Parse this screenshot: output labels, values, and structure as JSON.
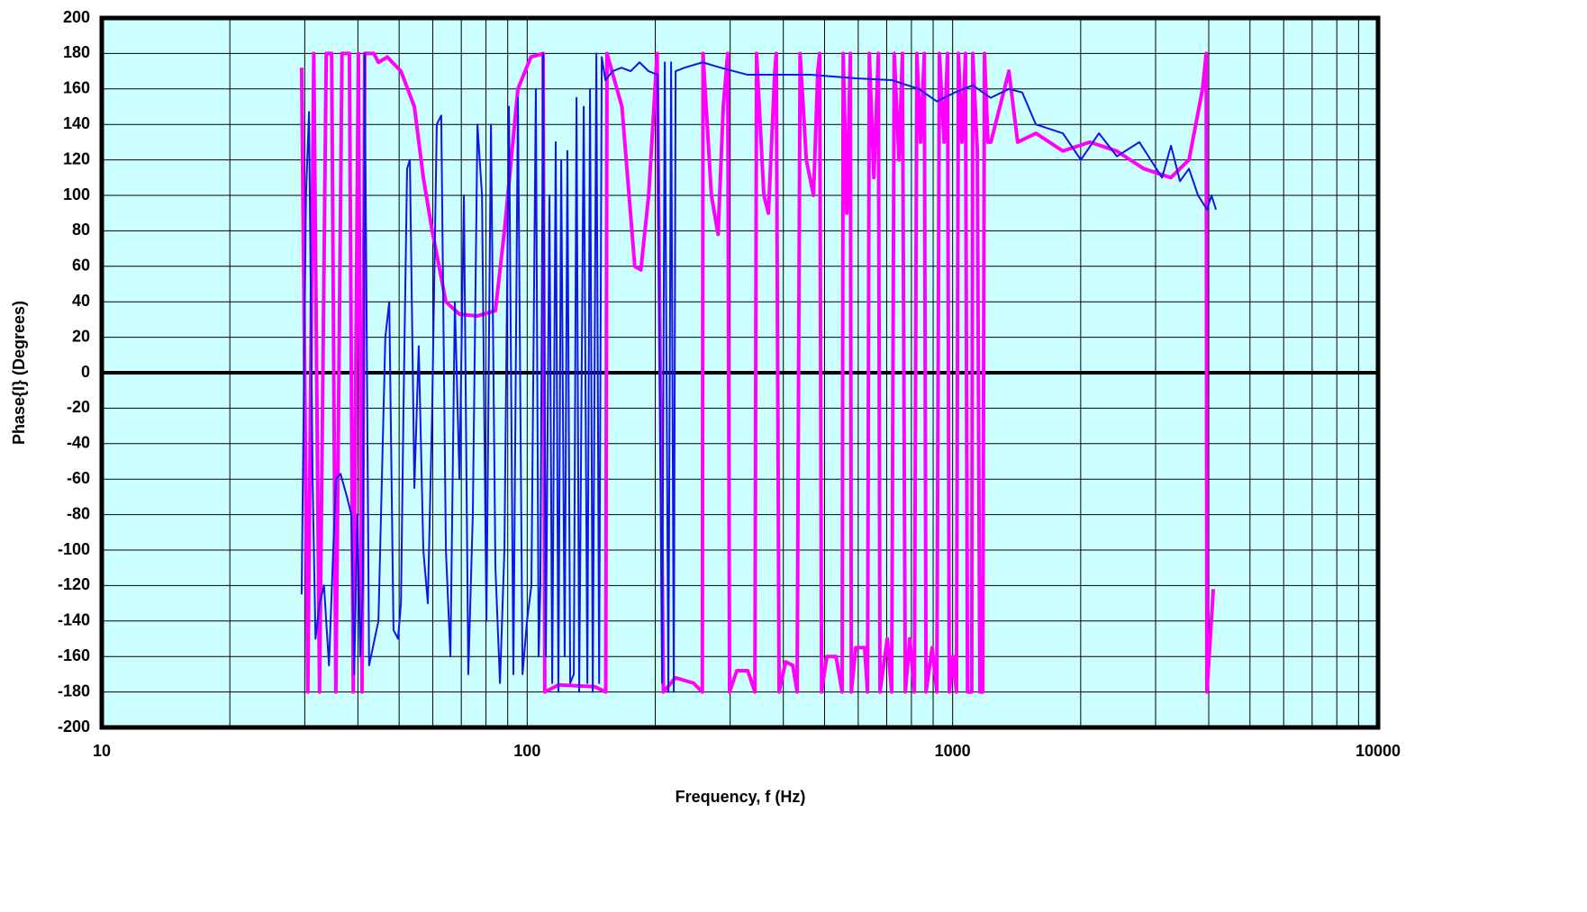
{
  "chart_data": {
    "type": "line",
    "xlabel": "Frequency, f (Hz)",
    "ylabel": "Phase{I} (Degrees)",
    "xlog": true,
    "xlim": [
      10,
      10000
    ],
    "xticks": [
      10,
      100,
      1000,
      10000
    ],
    "ylim": [
      -200,
      200
    ],
    "yticks": [
      -200,
      -180,
      -160,
      -140,
      -120,
      -100,
      -80,
      -60,
      -40,
      -20,
      0,
      20,
      40,
      60,
      80,
      100,
      120,
      140,
      160,
      180,
      200
    ],
    "grid": true,
    "background": "#ccffff",
    "series": [
      {
        "color": "#ff00ff",
        "x": [
          29.5,
          30.5,
          31.5,
          32.5,
          33.7,
          34.7,
          35.5,
          36.7,
          38.2,
          39.0,
          40.1,
          40.9,
          41.5,
          43.6,
          44.7,
          46.9,
          50.5,
          54.3,
          57.0,
          59.8,
          64.4,
          69.3,
          76.4,
          84.2,
          88.4,
          95.1,
          102,
          109,
          110,
          118.5,
          144,
          153,
          154,
          167,
          179,
          185,
          193,
          202,
          209,
          223,
          246,
          258,
          259,
          271,
          281,
          289,
          296,
          299,
          311,
          330,
          343,
          346,
          360,
          369,
          382,
          385,
          391,
          405,
          421,
          431,
          438,
          453,
          471,
          482,
          487,
          492,
          506,
          532,
          550,
          553,
          564,
          575,
          578,
          592,
          621,
          631,
          637,
          653,
          669,
          675,
          702,
          719,
          729,
          748,
          762,
          774,
          793,
          813,
          824,
          841,
          858,
          866,
          895,
          918,
          931,
          955,
          973,
          982,
          1002,
          1021,
          1032,
          1052,
          1072,
          1084,
          1109,
          1115,
          1143,
          1159,
          1177,
          1188,
          1211,
          1230,
          1356,
          1422,
          1570,
          1816,
          2101,
          2430,
          2816,
          3258,
          3595,
          3868,
          3945,
          3960,
          4100
        ],
        "values": [
          172,
          -180,
          180,
          -180,
          180,
          180,
          -180,
          180,
          180,
          -180,
          180,
          -180,
          180,
          180,
          175,
          178,
          170,
          150,
          110,
          80,
          40,
          33,
          32,
          35,
          80,
          160,
          178,
          180,
          -180,
          -176,
          -177,
          -180,
          180,
          150,
          60,
          58,
          100,
          180,
          -180,
          -172,
          -175,
          -180,
          180,
          100,
          78,
          150,
          180,
          -180,
          -168,
          -168,
          -180,
          180,
          100,
          90,
          170,
          180,
          -180,
          -163,
          -165,
          -180,
          180,
          120,
          100,
          170,
          180,
          -180,
          -160,
          -160,
          -180,
          180,
          90,
          180,
          -180,
          -155,
          -155,
          -180,
          180,
          110,
          180,
          -180,
          -150,
          -180,
          180,
          120,
          180,
          -180,
          -150,
          -180,
          180,
          130,
          180,
          -180,
          -155,
          -180,
          180,
          130,
          180,
          -180,
          -160,
          -180,
          180,
          130,
          180,
          -180,
          -180,
          180,
          125,
          -180,
          -180,
          180,
          130,
          130,
          170,
          130,
          135,
          125,
          130,
          125,
          115,
          110,
          120,
          160,
          180,
          -180,
          -122
        ]
      },
      {
        "color": "#1414e6",
        "x": [
          29.5,
          30.2,
          30.7,
          31.3,
          31.8,
          32.5,
          33.3,
          34.2,
          35.0,
          35.5,
          36.4,
          37.7,
          38.6,
          39.2,
          39.9,
          40.5,
          41.1,
          41.5,
          42.5,
          44.7,
          46.4,
          47.4,
          48.5,
          49.7,
          50.5,
          51.2,
          52.2,
          53.0,
          54.3,
          55.6,
          57.0,
          58.4,
          59.8,
          61.3,
          62.8,
          64.4,
          66.0,
          67.6,
          69.3,
          71.0,
          72.7,
          74.5,
          76.4,
          78.3,
          80.2,
          82.2,
          84.2,
          86.3,
          88.4,
          90.6,
          92.8,
          95.1,
          97.5,
          99.9,
          102.3,
          104.8,
          106.4,
          107.4,
          109.0,
          110.6,
          112.8,
          114.5,
          116.7,
          118.4,
          120.2,
          122.5,
          124.3,
          126.2,
          128.7,
          130.6,
          132.5,
          135.8,
          138.5,
          140.5,
          142.6,
          145.4,
          147.6,
          149.7,
          152.7,
          158.7,
          166.6,
          175.0,
          183.7,
          192.9,
          202.5,
          207.5,
          210.6,
          214.7,
          217.9,
          221.1,
          223.3,
          234.4,
          258.4,
          284.9,
          329.7,
          381.6,
          463.8,
          591.7,
          719.3,
          832.4,
          918.0,
          1012,
          1115,
          1229,
          1356,
          1458,
          1569,
          1816,
          2002,
          2208,
          2433,
          2748,
          3106,
          3261,
          3423,
          3594,
          3775,
          3963,
          4059,
          4160
        ],
        "values": [
          -125,
          100,
          147,
          -60,
          -150,
          -130,
          -120,
          -165,
          -100,
          -60,
          -57,
          -70,
          -80,
          -170,
          -80,
          -160,
          -120,
          180,
          -165,
          -140,
          20,
          40,
          -145,
          -150,
          -130,
          -20,
          115,
          120,
          -65,
          15,
          -100,
          -130,
          -20,
          140,
          145,
          -100,
          -160,
          40,
          -60,
          100,
          -170,
          -80,
          140,
          100,
          -140,
          140,
          -110,
          -175,
          -100,
          150,
          -170,
          155,
          -170,
          -140,
          -120,
          160,
          -160,
          -120,
          180,
          -160,
          100,
          -175,
          130,
          -180,
          120,
          -160,
          125,
          -175,
          -170,
          155,
          -180,
          150,
          -175,
          160,
          -180,
          180,
          -175,
          178,
          165,
          170,
          172,
          170,
          175,
          170,
          168,
          -175,
          175,
          -180,
          175,
          -180,
          170,
          172,
          175,
          172,
          168,
          168,
          168,
          166,
          165,
          160,
          153,
          158,
          162,
          155,
          160,
          158,
          140,
          135,
          120,
          135,
          122,
          130,
          110,
          128,
          108,
          115,
          100,
          92,
          100,
          92
        ]
      }
    ]
  }
}
